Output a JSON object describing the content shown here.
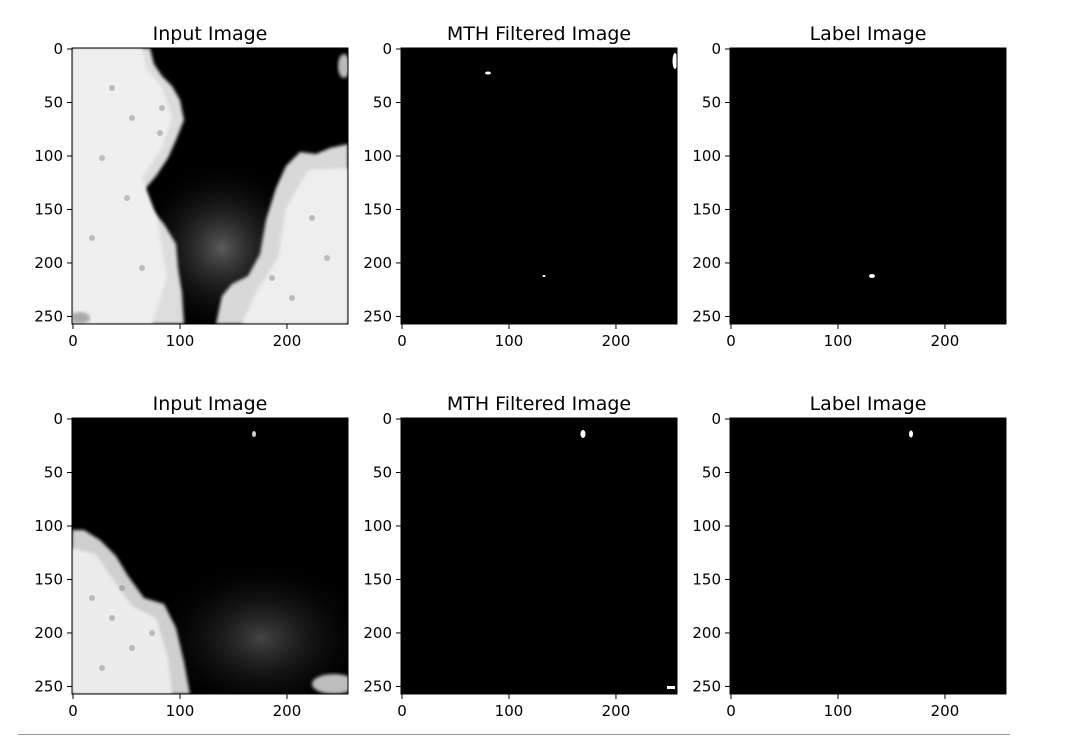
{
  "figure": {
    "rows": [
      {
        "panels": [
          {
            "title": "Input Image",
            "kind": "input_top"
          },
          {
            "title": "MTH Filtered Image",
            "kind": "mth_top"
          },
          {
            "title": "Label Image",
            "kind": "label_top"
          }
        ]
      },
      {
        "panels": [
          {
            "title": "Input Image",
            "kind": "input_bottom"
          },
          {
            "title": "MTH Filtered Image",
            "kind": "mth_bottom"
          },
          {
            "title": "Label Image",
            "kind": "label_bottom"
          }
        ]
      }
    ],
    "x_ticks": [
      "0",
      "100",
      "200"
    ],
    "y_ticks": [
      "0",
      "50",
      "100",
      "150",
      "200",
      "250"
    ]
  }
}
